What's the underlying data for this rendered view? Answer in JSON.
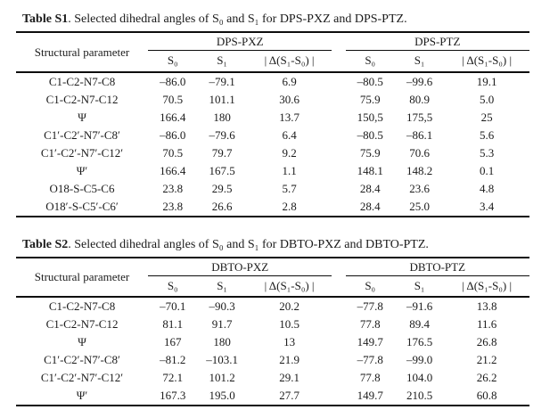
{
  "page": {
    "background": "#ffffff",
    "text_color": "#1b1b1b",
    "rule_color": "#0d0d0d"
  },
  "tables": [
    {
      "title_bold": "Table S1",
      "title_rest": ". Selected dihedral angles of S₀ and S₁ for DPS-PXZ and DPS-PTZ.",
      "param_header": "Structural parameter",
      "groups": [
        {
          "label": "DPS-PXZ",
          "columns": [
            "S₀",
            "S₁",
            "| Δ(S₁-S₀) |"
          ]
        },
        {
          "label": "DPS-PTZ",
          "columns": [
            "S₀",
            "S₁",
            "| Δ(S₁-S₀) |"
          ]
        }
      ],
      "rows": [
        {
          "param": "C1-C2-N7-C8",
          "values": [
            "–86.0",
            "–79.1",
            "6.9",
            "–80.5",
            "–99.6",
            "19.1"
          ]
        },
        {
          "param": "C1-C2-N7-C12",
          "values": [
            "70.5",
            "101.1",
            "30.6",
            "75.9",
            "80.9",
            "5.0"
          ]
        },
        {
          "param": "Ψ",
          "values": [
            "166.4",
            "180",
            "13.7",
            "150,5",
            "175,5",
            "25"
          ]
        },
        {
          "param": "C1′-C2′-N7′-C8′",
          "values": [
            "–86.0",
            "–79.6",
            "6.4",
            "–80.5",
            "–86.1",
            "5.6"
          ]
        },
        {
          "param": "C1′-C2′-N7′-C12′",
          "values": [
            "70.5",
            "79.7",
            "9.2",
            "75.9",
            "70.6",
            "5.3"
          ]
        },
        {
          "param": "Ψ′",
          "values": [
            "166.4",
            "167.5",
            "1.1",
            "148.1",
            "148.2",
            "0.1"
          ]
        },
        {
          "param": "O18-S-C5-C6",
          "values": [
            "23.8",
            "29.5",
            "5.7",
            "28.4",
            "23.6",
            "4.8"
          ]
        },
        {
          "param": "O18′-S-C5′-C6′",
          "values": [
            "23.8",
            "26.6",
            "2.8",
            "28.4",
            "25.0",
            "3.4"
          ]
        }
      ]
    },
    {
      "title_bold": "Table S2",
      "title_rest": ". Selected dihedral angles of S₀ and S₁ for DBTO-PXZ and DBTO-PTZ.",
      "param_header": "Structural parameter",
      "groups": [
        {
          "label": "DBTO-PXZ",
          "columns": [
            "S₀",
            "S₁",
            "| Δ(S₁-S₀) |"
          ]
        },
        {
          "label": "DBTO-PTZ",
          "columns": [
            "S₀",
            "S₁",
            "| Δ(S₁-S₀) |"
          ]
        }
      ],
      "rows": [
        {
          "param": "C1-C2-N7-C8",
          "values": [
            "–70.1",
            "–90.3",
            "20.2",
            "–77.8",
            "–91.6",
            "13.8"
          ]
        },
        {
          "param": "C1-C2-N7-C12",
          "values": [
            "81.1",
            "91.7",
            "10.5",
            "77.8",
            "89.4",
            "11.6"
          ]
        },
        {
          "param": "Ψ",
          "values": [
            "167",
            "180",
            "13",
            "149.7",
            "176.5",
            "26.8"
          ]
        },
        {
          "param": "C1′-C2′-N7′-C8′",
          "values": [
            "–81.2",
            "–103.1",
            "21.9",
            "–77.8",
            "–99.0",
            "21.2"
          ]
        },
        {
          "param": "C1′-C2′-N7′-C12′",
          "values": [
            "72.1",
            "101.2",
            "29.1",
            "77.8",
            "104.0",
            "26.2"
          ]
        },
        {
          "param": "Ψ′",
          "values": [
            "167.3",
            "195.0",
            "27.7",
            "149.7",
            "210.5",
            "60.8"
          ]
        }
      ]
    }
  ]
}
